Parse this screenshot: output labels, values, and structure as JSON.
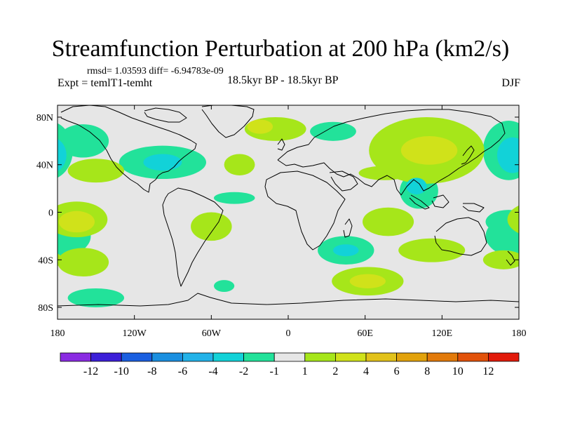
{
  "chart_data": {
    "type": "heatmap",
    "title": "Streamfunction Perturbation at 200 hPa (km2/s)",
    "stats_text": "rmsd= 1.03593 diff= -6.94783e-09",
    "left_label": "Expt = temlT1-temht",
    "center_label": "18.5kyr BP - 18.5kyr BP",
    "right_label": "DJF",
    "xlim": [
      -180,
      180
    ],
    "ylim": [
      -90,
      90
    ],
    "x_ticks": [
      {
        "value": -180,
        "label": "180"
      },
      {
        "value": -120,
        "label": "120W"
      },
      {
        "value": -60,
        "label": "60W"
      },
      {
        "value": 0,
        "label": "0"
      },
      {
        "value": 60,
        "label": "60E"
      },
      {
        "value": 120,
        "label": "120E"
      },
      {
        "value": 180,
        "label": "180"
      }
    ],
    "y_ticks": [
      {
        "value": 80,
        "label": "80N"
      },
      {
        "value": 40,
        "label": "40N"
      },
      {
        "value": 0,
        "label": "0"
      },
      {
        "value": -40,
        "label": "40S"
      },
      {
        "value": -80,
        "label": "80S"
      }
    ],
    "colorbar": {
      "colors": [
        "#8a2be2",
        "#3c1fd8",
        "#1a5fe0",
        "#1a8fe0",
        "#22b2e8",
        "#12d2d8",
        "#22e29a",
        "#e6e6e6",
        "#a6e61a",
        "#d0e21a",
        "#e2c21a",
        "#e2a20c",
        "#e27a0a",
        "#e2520a",
        "#e21a0a"
      ],
      "labels": [
        "-12",
        "-10",
        "-8",
        "-6",
        "-4",
        "-2",
        "-1",
        "1",
        "2",
        "4",
        "6",
        "8",
        "10",
        "12"
      ]
    },
    "anomalies": [
      {
        "lon": -10,
        "lat": 70,
        "rlon": 24,
        "rlat": 10,
        "value": 2
      },
      {
        "lon": -22,
        "lat": 72,
        "rlon": 10,
        "rlat": 6,
        "value": 4
      },
      {
        "lon": 35,
        "lat": 68,
        "rlon": 18,
        "rlat": 8,
        "value": -1
      },
      {
        "lon": 108,
        "lat": 52,
        "rlon": 45,
        "rlat": 28,
        "value": 2
      },
      {
        "lon": 110,
        "lat": 52,
        "rlon": 22,
        "rlat": 12,
        "value": 4
      },
      {
        "lon": 75,
        "lat": 33,
        "rlon": 20,
        "rlat": 6,
        "value": 2
      },
      {
        "lon": 172,
        "lat": 52,
        "rlon": 20,
        "rlat": 25,
        "value": -1
      },
      {
        "lon": 175,
        "lat": 48,
        "rlon": 12,
        "rlat": 15,
        "value": -2
      },
      {
        "lon": -160,
        "lat": 60,
        "rlon": 20,
        "rlat": 14,
        "value": -1
      },
      {
        "lon": -150,
        "lat": 35,
        "rlon": 22,
        "rlat": 10,
        "value": 2
      },
      {
        "lon": -98,
        "lat": 42,
        "rlon": 34,
        "rlat": 14,
        "value": -1
      },
      {
        "lon": -98,
        "lat": 42,
        "rlon": 15,
        "rlat": 7,
        "value": -2
      },
      {
        "lon": -38,
        "lat": 40,
        "rlon": 12,
        "rlat": 9,
        "value": 2
      },
      {
        "lon": -42,
        "lat": 12,
        "rlon": 16,
        "rlat": 5,
        "value": -1
      },
      {
        "lon": 102,
        "lat": 18,
        "rlon": 15,
        "rlat": 15,
        "value": -1
      },
      {
        "lon": 100,
        "lat": 22,
        "rlon": 8,
        "rlat": 7,
        "value": -2
      },
      {
        "lon": 78,
        "lat": -8,
        "rlon": 20,
        "rlat": 12,
        "value": 2
      },
      {
        "lon": -165,
        "lat": -6,
        "rlon": 24,
        "rlat": 15,
        "value": 2
      },
      {
        "lon": -165,
        "lat": -8,
        "rlon": 14,
        "rlat": 9,
        "value": 4
      },
      {
        "lon": -180,
        "lat": -20,
        "rlon": 26,
        "rlat": 18,
        "value": -1
      },
      {
        "lon": -60,
        "lat": -12,
        "rlon": 16,
        "rlat": 12,
        "value": 2
      },
      {
        "lon": 45,
        "lat": -32,
        "rlon": 22,
        "rlat": 12,
        "value": -1
      },
      {
        "lon": 45,
        "lat": -32,
        "rlon": 10,
        "rlat": 5,
        "value": -2
      },
      {
        "lon": 112,
        "lat": -32,
        "rlon": 26,
        "rlat": 10,
        "value": 2
      },
      {
        "lon": -160,
        "lat": -42,
        "rlon": 20,
        "rlat": 12,
        "value": 2
      },
      {
        "lon": 62,
        "lat": -58,
        "rlon": 28,
        "rlat": 12,
        "value": 2
      },
      {
        "lon": 62,
        "lat": -58,
        "rlon": 14,
        "rlat": 6,
        "value": 4
      },
      {
        "lon": -150,
        "lat": -72,
        "rlon": 22,
        "rlat": 8,
        "value": -1
      },
      {
        "lon": -50,
        "lat": -62,
        "rlon": 8,
        "rlat": 5,
        "value": -1
      },
      {
        "lon": 172,
        "lat": -8,
        "rlon": 18,
        "rlat": 10,
        "value": -1
      },
      {
        "lon": 168,
        "lat": -40,
        "rlon": 16,
        "rlat": 8,
        "value": 2
      }
    ]
  }
}
